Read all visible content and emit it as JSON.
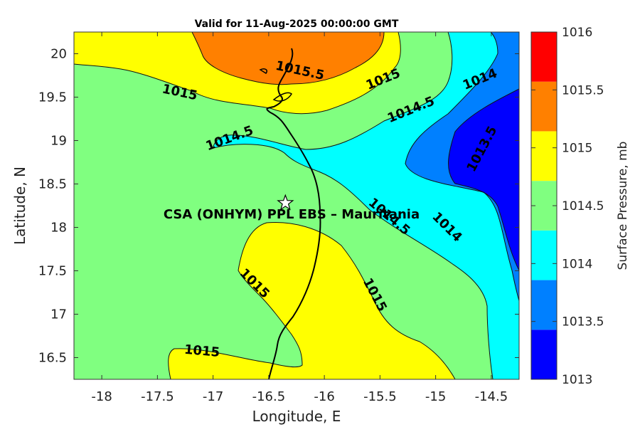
{
  "chart_data": {
    "type": "contour",
    "title": "Valid for 11-Aug-2025 00:00:00 GMT",
    "xlabel": "Longitude, E",
    "ylabel": "Latitude, N",
    "colorbar_label": "Surface Pressure, mb",
    "xlim": [
      -18.25,
      -14.25
    ],
    "ylim": [
      16.25,
      20.25
    ],
    "xticks": [
      -18,
      -17.5,
      -17,
      -16.5,
      -16,
      -15.5,
      -15,
      -14.5
    ],
    "xtick_labels": [
      "-18",
      "-17.5",
      "-17",
      "-16.5",
      "-16",
      "-15.5",
      "-15",
      "-14.5"
    ],
    "yticks": [
      16.5,
      17,
      17.5,
      18,
      18.5,
      19,
      19.5,
      20
    ],
    "ytick_labels": [
      "16.5",
      "17",
      "17.5",
      "18",
      "18.5",
      "19",
      "19.5",
      "20"
    ],
    "levels": [
      1013,
      1013.5,
      1014,
      1014.5,
      1015,
      1015.5,
      1016
    ],
    "level_labels": [
      "1013",
      "1013.5",
      "1014",
      "1014.5",
      "1015",
      "1015.5",
      "1016"
    ],
    "level_colors": [
      "#0000ff",
      "#0080ff",
      "#00ffff",
      "#80ff80",
      "#ffff00",
      "#ff8000",
      "#ff0000"
    ],
    "contour_labels": [
      {
        "text": "1015.5",
        "lon": -16.22,
        "lat": 19.8
      },
      {
        "text": "1015",
        "lon": -17.3,
        "lat": 19.55
      },
      {
        "text": "1015",
        "lon": -15.47,
        "lat": 19.7
      },
      {
        "text": "1014.5",
        "lon": -15.22,
        "lat": 19.35
      },
      {
        "text": "1014",
        "lon": -14.6,
        "lat": 19.7
      },
      {
        "text": "1014.5",
        "lon": -16.85,
        "lat": 19.02
      },
      {
        "text": "1013.5",
        "lon": -14.58,
        "lat": 18.9
      },
      {
        "text": "1014.5",
        "lon": -15.42,
        "lat": 18.12
      },
      {
        "text": "1014",
        "lon": -14.9,
        "lat": 18.0
      },
      {
        "text": "1015",
        "lon": -16.63,
        "lat": 17.35
      },
      {
        "text": "1015",
        "lon": -15.55,
        "lat": 17.22
      },
      {
        "text": "1015",
        "lon": -17.1,
        "lat": 16.57
      }
    ],
    "station": {
      "name": "CSA (ONHYM) PPL EBS  – Mauritania",
      "lon": -16.35,
      "lat": 18.28
    },
    "grid": false
  }
}
